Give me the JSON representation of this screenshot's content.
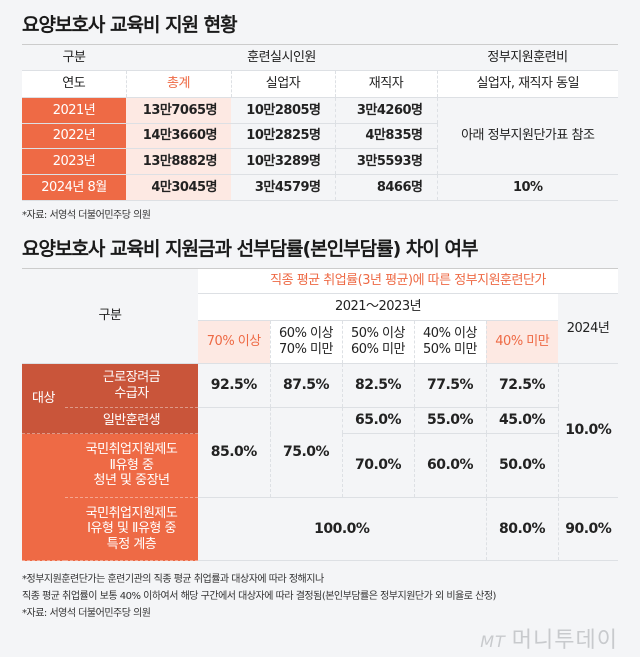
{
  "table1": {
    "title": "요양보호사 교육비 지원 현황",
    "head1": [
      "구분",
      "훈련실시인원",
      "정부지원훈련비"
    ],
    "head2": [
      "연도",
      "총계",
      "실업자",
      "재직자",
      "실업자, 재직자 동일"
    ],
    "rows": [
      {
        "year": "2021년",
        "total": "13만7065명",
        "unemployed": "10만2805명",
        "employed": "3만4260명"
      },
      {
        "year": "2022년",
        "total": "14만3660명",
        "unemployed": "10만2825명",
        "employed": "4만835명"
      },
      {
        "year": "2023년",
        "total": "13만8882명",
        "unemployed": "10만3289명",
        "employed": "3만5593명"
      },
      {
        "year": "2024년 8월",
        "total": "4만3045명",
        "unemployed": "3만4579명",
        "employed": "8466명"
      }
    ],
    "support_note": "아래 정부지원단가표 참조",
    "support_2024": "10%",
    "source": "*자료: 서영석 더불어민주당 의원"
  },
  "table2": {
    "title": "요양보호사 교육비 지원금과 선부담률(본인부담률) 차이 여부",
    "category": "구분",
    "group_header": "직종 평균 취업률(3년 평균)에 따른 정부지원훈련단가",
    "period": "2021～2023년",
    "year_2024": "2024년",
    "bands": [
      [
        "70% 이상",
        ""
      ],
      [
        "60% 이상",
        "70% 미만"
      ],
      [
        "50% 이상",
        "60% 미만"
      ],
      [
        "40% 이상",
        "50% 미만"
      ],
      [
        "40% 미만",
        ""
      ]
    ],
    "target_label": "대상",
    "row_labels": [
      [
        "근로장려금",
        "수급자"
      ],
      [
        "일반훈련생"
      ],
      [
        "국민취업지원제도",
        "Ⅱ유형 중",
        "청년 및 중장년"
      ],
      [
        "국민취업지원제도",
        "Ⅰ유형 및 Ⅱ유형 중",
        "특정 계층"
      ]
    ],
    "r1": [
      "92.5%",
      "87.5%",
      "82.5%",
      "77.5%",
      "72.5%"
    ],
    "r23_shared": [
      "85.0%",
      "75.0%"
    ],
    "r2": [
      "65.0%",
      "55.0%",
      "45.0%"
    ],
    "r3": [
      "70.0%",
      "60.0%",
      "50.0%"
    ],
    "r123_2024": "10.0%",
    "r4": [
      "100.0%",
      "80.0%",
      "90.0%"
    ],
    "notes": [
      "*정부지원훈련단가는 훈련기관의 직종 평균 취업률과 대상자에 따라 정해지나",
      "직종 평균 취업률이 보통 40% 이하여서 해당 구간에서 대상자에 따라 결정됨(본인부담률은 정부지원단가 외 비율로 산정)",
      "*자료: 서영석 더불어민주당 의원"
    ]
  },
  "watermark": {
    "mt": "MT",
    "name": "머니투데이"
  },
  "colors": {
    "accent": "#ee6a45",
    "dark_accent": "#c9553a",
    "pink": "#fde9e3"
  }
}
